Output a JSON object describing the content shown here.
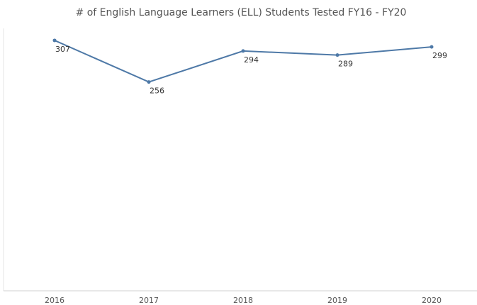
{
  "chart_data": {
    "type": "line",
    "title": "# of English Language Learners (ELL) Students Tested FY16 - FY20",
    "categories": [
      "2016",
      "2017",
      "2018",
      "2019",
      "2020"
    ],
    "series": [
      {
        "name": null,
        "color": "#4e79a7",
        "values": [
          307,
          256,
          294,
          289,
          299
        ]
      }
    ],
    "ylim": [
      0,
      320
    ]
  }
}
